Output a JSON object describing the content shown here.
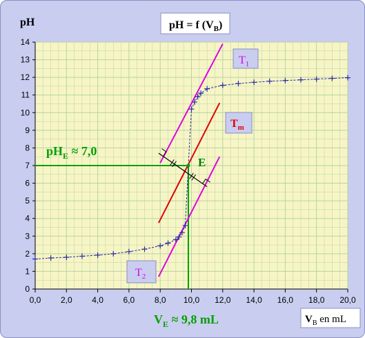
{
  "labels": {
    "y_axis": "pH",
    "title_main": "pH = f (V",
    "title_sub": "B",
    "title_end": ")",
    "x_axis_main": "V",
    "x_axis_sub": "B",
    "x_axis_end": " en mL",
    "t1_main": "T",
    "t1_sub": "1",
    "tm_main": "T",
    "tm_sub": "m",
    "t2_main": "T",
    "t2_sub": "2",
    "point_e": "E",
    "ph_e_main": "pH",
    "ph_e_sub": "E",
    "ph_e_end": " ≈ 7,0",
    "v_e_main": "V",
    "v_e_sub": "E",
    "v_e_end": " ≈ 9,8 mL"
  },
  "colors": {
    "plot_bg": "#f7f5c6",
    "grid": "#b6d4a2",
    "frame_bg": "#c9cdf0",
    "curve": "#2a2aa0",
    "tangent": "#e000e0",
    "median": "#e00000",
    "equivalence": "#00a000",
    "perpendicular": "#000000"
  },
  "chart_data": {
    "type": "scatter",
    "xlim": [
      0,
      20
    ],
    "ylim": [
      0,
      14
    ],
    "x_ticks": [
      "0,0",
      "2,0",
      "4,0",
      "6,0",
      "8,0",
      "10,0",
      "12,0",
      "14,0",
      "16,0",
      "18,0",
      "20,0"
    ],
    "y_ticks": [
      "0",
      "1",
      "2",
      "3",
      "4",
      "5",
      "6",
      "7",
      "8",
      "9",
      "10",
      "11",
      "12",
      "13",
      "14"
    ],
    "grid": true,
    "series": [
      {
        "x": [
          0,
          1,
          2,
          3,
          4,
          5,
          6,
          7,
          8,
          8.5,
          9,
          9.2,
          9.4,
          9.6,
          9.8,
          10,
          10.2,
          10.4,
          10.6,
          11,
          12,
          13,
          14,
          15,
          16,
          17,
          18,
          19,
          20
        ],
        "y": [
          1.7,
          1.76,
          1.8,
          1.86,
          1.92,
          2.0,
          2.12,
          2.26,
          2.45,
          2.6,
          2.8,
          2.95,
          3.2,
          3.6,
          7.0,
          10.2,
          10.6,
          10.9,
          11.1,
          11.35,
          11.55,
          11.65,
          11.72,
          11.78,
          11.82,
          11.86,
          11.9,
          11.94,
          11.98
        ]
      }
    ],
    "tangents": [
      {
        "name": "T1",
        "x1": 8.0,
        "y1": 7.15,
        "x2": 12.0,
        "y2": 13.9
      },
      {
        "name": "Tm",
        "x1": 7.9,
        "y1": 3.75,
        "x2": 11.8,
        "y2": 10.55
      },
      {
        "name": "T2",
        "x1": 7.9,
        "y1": 0.7,
        "x2": 11.8,
        "y2": 7.5
      }
    ],
    "perpendicular": {
      "x1": 7.9,
      "y1": 7.7,
      "x2": 11.0,
      "y2": 5.8
    },
    "equivalence_point": {
      "x": 9.8,
      "y": 7.0
    }
  }
}
